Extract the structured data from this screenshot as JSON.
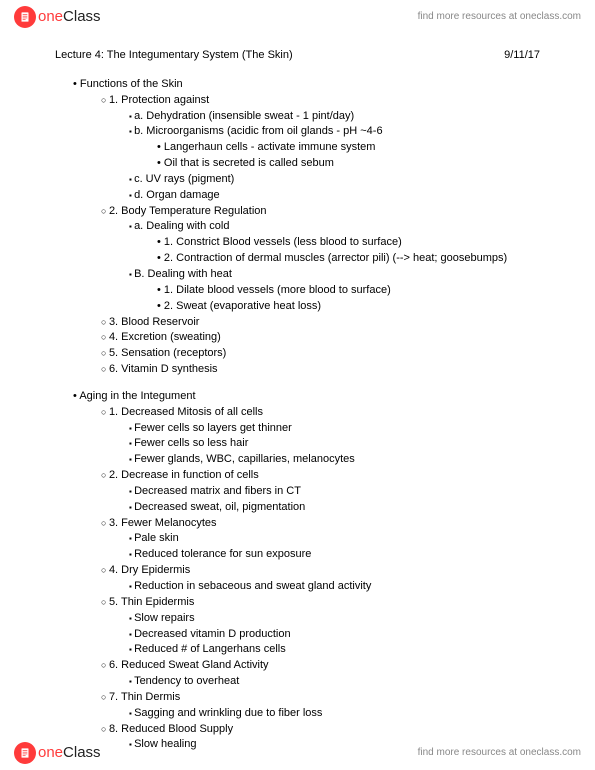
{
  "brand": {
    "name_one": "one",
    "name_class": "Class",
    "tagline": "find more resources at oneclass.com"
  },
  "title": "Lecture 4: The Integumentary System (The Skin)",
  "date": "9/11/17",
  "sections": [
    {
      "heading": "Functions of the Skin",
      "items": [
        {
          "t": "1. Protection against",
          "items": [
            {
              "t": "a. Dehydration (insensible sweat - 1 pint/day)"
            },
            {
              "t": "b. Microorganisms (acidic from oil glands - pH ~4-6",
              "items": [
                {
                  "t": "Langerhaun cells - activate immune system"
                },
                {
                  "t": "Oil that is secreted is called sebum"
                }
              ]
            },
            {
              "t": "c. UV rays (pigment)"
            },
            {
              "t": "d. Organ damage"
            }
          ]
        },
        {
          "t": "2. Body Temperature Regulation",
          "items": [
            {
              "t": "a. Dealing with cold",
              "items": [
                {
                  "t": "1. Constrict Blood vessels (less blood to surface)"
                },
                {
                  "t": "2. Contraction of dermal muscles (arrector pili)  (--> heat; goosebumps)"
                }
              ]
            },
            {
              "t": "B. Dealing with heat",
              "items": [
                {
                  "t": "1.  Dilate blood vessels (more blood to surface)"
                },
                {
                  "t": "2. Sweat (evaporative heat loss)"
                }
              ]
            }
          ]
        },
        {
          "t": "3. Blood Reservoir"
        },
        {
          "t": "4. Excretion (sweating)"
        },
        {
          "t": "5. Sensation (receptors)"
        },
        {
          "t": "6. Vitamin D synthesis"
        }
      ]
    },
    {
      "heading": "Aging in the Integument",
      "items": [
        {
          "t": "1.  Decreased Mitosis of all cells",
          "items": [
            {
              "t": "Fewer cells so layers get thinner"
            },
            {
              "t": "Fewer cells so less hair"
            },
            {
              "t": "Fewer glands, WBC, capillaries, melanocytes"
            }
          ]
        },
        {
          "t": "2. Decrease in function of cells",
          "items": [
            {
              "t": "Decreased matrix and fibers in CT"
            },
            {
              "t": "Decreased sweat, oil, pigmentation"
            }
          ]
        },
        {
          "t": "3. Fewer Melanocytes",
          "items": [
            {
              "t": "Pale skin"
            },
            {
              "t": "Reduced tolerance for sun exposure"
            }
          ]
        },
        {
          "t": "4. Dry Epidermis",
          "items": [
            {
              "t": "Reduction in sebaceous and sweat gland activity"
            }
          ]
        },
        {
          "t": "5. Thin Epidermis",
          "items": [
            {
              "t": "Slow repairs"
            },
            {
              "t": "Decreased vitamin D production"
            },
            {
              "t": "Reduced # of Langerhans cells"
            }
          ]
        },
        {
          "t": "6. Reduced Sweat Gland Activity",
          "items": [
            {
              "t": "Tendency to overheat"
            }
          ]
        },
        {
          "t": "7. Thin Dermis",
          "items": [
            {
              "t": "Sagging and wrinkling due to fiber loss"
            }
          ]
        },
        {
          "t": "8. Reduced Blood Supply",
          "items": [
            {
              "t": "Slow healing"
            }
          ]
        }
      ]
    }
  ]
}
